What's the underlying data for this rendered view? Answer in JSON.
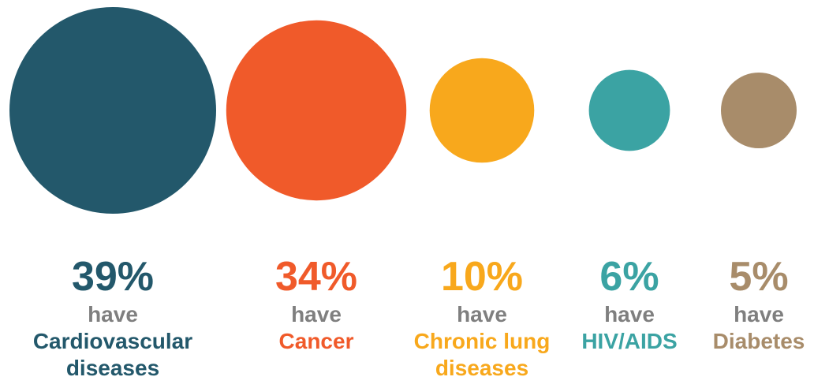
{
  "chart_data": {
    "type": "bubble",
    "connector": "have",
    "items": [
      {
        "value": 39,
        "label": "39%",
        "category": "Cardiovascular\ndiseases",
        "color": "#23586b"
      },
      {
        "value": 34,
        "label": "34%",
        "category": "Cancer",
        "color": "#f05a2a"
      },
      {
        "value": 10,
        "label": "10%",
        "category": "Chronic lung\ndiseases",
        "color": "#f8a81c"
      },
      {
        "value": 6,
        "label": "6%",
        "category": "HIV/AIDS",
        "color": "#3ba3a3"
      },
      {
        "value": 5,
        "label": "5%",
        "category": "Diabetes",
        "color": "#a88c6a"
      }
    ]
  }
}
